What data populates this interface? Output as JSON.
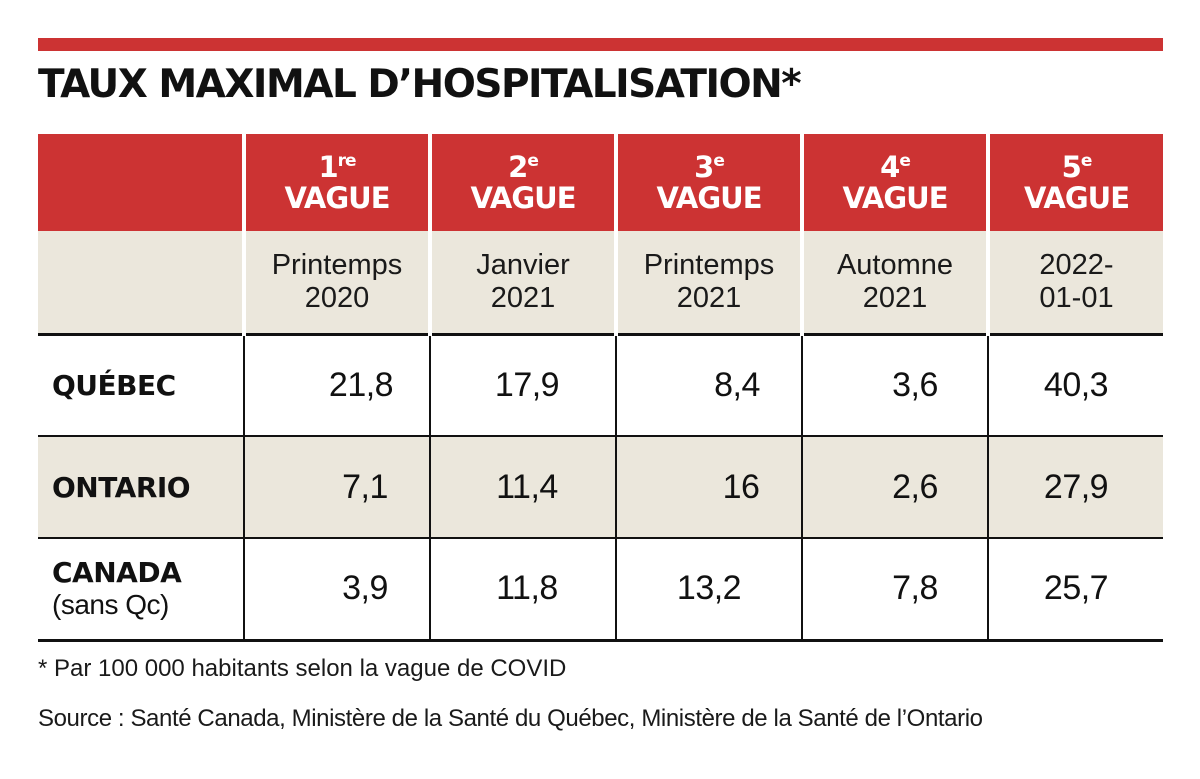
{
  "chart_data": {
    "type": "table",
    "title": "TAUX MAXIMAL D’HOSPITALISATION*",
    "waves": [
      {
        "ord": "1",
        "sup": "re",
        "label": "VAGUE",
        "period": [
          "Printemps",
          "2020"
        ]
      },
      {
        "ord": "2",
        "sup": "e",
        "label": "VAGUE",
        "period": [
          "Janvier",
          "2021"
        ]
      },
      {
        "ord": "3",
        "sup": "e",
        "label": "VAGUE",
        "period": [
          "Printemps",
          "2021"
        ]
      },
      {
        "ord": "4",
        "sup": "e",
        "label": "VAGUE",
        "period": [
          "Automne",
          "2021"
        ]
      },
      {
        "ord": "5",
        "sup": "e",
        "label": "VAGUE",
        "period": [
          "2022-",
          "01-01"
        ]
      }
    ],
    "rows": [
      {
        "region": "QUÉBEC",
        "sub": "",
        "values": [
          "21,8",
          "17,9",
          "8,4",
          "3,6",
          "40,3"
        ]
      },
      {
        "region": "ONTARIO",
        "sub": "",
        "values": [
          "7,1",
          "11,4",
          "16",
          "2,6",
          "27,9"
        ]
      },
      {
        "region": "CANADA",
        "sub": "(sans Qc)",
        "values": [
          "3,9",
          "11,8",
          "13,2",
          "7,8",
          "25,7"
        ]
      }
    ],
    "note": "* Par 100 000 habitants selon la vague de COVID",
    "source": "Source : Santé Canada, Ministère de la Santé du Québec, Ministère de la Santé de l’Ontario"
  },
  "colors": {
    "accent": "#cc3333",
    "band": "#ebe7dc"
  }
}
